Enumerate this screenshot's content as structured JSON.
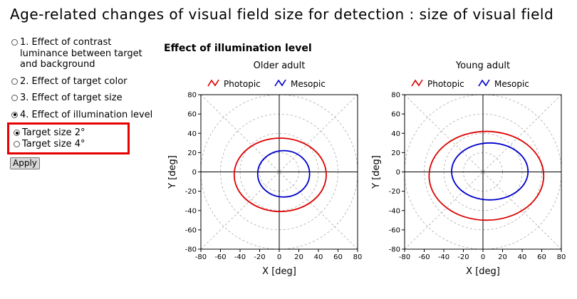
{
  "title": "Age-related changes of visual field size for detection : size of visual field",
  "options": [
    {
      "label": "1. Effect of contrast luminance between target and background",
      "selected": false
    },
    {
      "label": "2. Effect of target color",
      "selected": false
    },
    {
      "label": "3. Effect of target size",
      "selected": false
    },
    {
      "label": "4. Effect of illumination level",
      "selected": true
    }
  ],
  "sub_options": [
    {
      "label": "Target size 2°",
      "selected": true
    },
    {
      "label": "Target size 4°",
      "selected": false
    }
  ],
  "apply_label": "Apply",
  "panel_title": "Effect of illumination level",
  "chart_data": [
    {
      "type": "line",
      "title": "Older adult",
      "xlabel": "X [deg]",
      "ylabel": "Y [deg]",
      "xlim": [
        -80,
        80
      ],
      "ylim": [
        -80,
        80
      ],
      "ticks": [
        -80,
        -60,
        -40,
        -20,
        0,
        20,
        40,
        60,
        80
      ],
      "legend": "top",
      "series": [
        {
          "name": "Photopic",
          "color": "#dd0000",
          "shape": "ellipse",
          "left": -46,
          "right": 48,
          "top": 35,
          "bottom": -41
        },
        {
          "name": "Mesopic",
          "color": "#0000cc",
          "shape": "ellipse",
          "left": -22,
          "right": 31,
          "top": 22,
          "bottom": -26
        }
      ]
    },
    {
      "type": "line",
      "title": "Young adult",
      "xlabel": "X [deg]",
      "ylabel": "Y [deg]",
      "xlim": [
        -80,
        80
      ],
      "ylim": [
        -80,
        80
      ],
      "ticks": [
        -80,
        -60,
        -40,
        -20,
        0,
        20,
        40,
        60,
        80
      ],
      "legend": "top",
      "series": [
        {
          "name": "Photopic",
          "color": "#dd0000",
          "shape": "ellipse",
          "left": -55,
          "right": 62,
          "top": 42,
          "bottom": -50
        },
        {
          "name": "Mesopic",
          "color": "#0000cc",
          "shape": "ellipse",
          "left": -32,
          "right": 46,
          "top": 30,
          "bottom": -29
        }
      ]
    }
  ]
}
